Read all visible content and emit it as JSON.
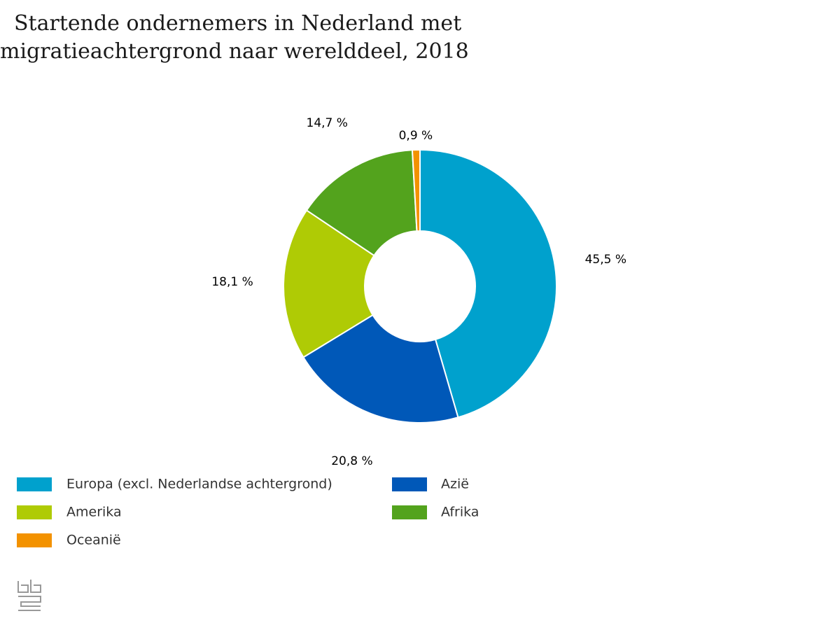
{
  "chart_data": {
    "type": "donut",
    "title": "Startende ondernemers in Nederland met migratieachtergrond naar werelddeel, 2018",
    "categories": [
      "Europa (excl. Nederlandse achtergrond)",
      "Azië",
      "Amerika",
      "Afrika",
      "Oceanië"
    ],
    "values": [
      45.5,
      20.8,
      18.1,
      14.7,
      0.9
    ],
    "value_labels": [
      "45,5 %",
      "20,8 %",
      "18,1 %",
      "14,7 %",
      "0,9 %"
    ],
    "colors": [
      "#00a1cd",
      "#0058b8",
      "#afcb05",
      "#53a31d",
      "#f39200"
    ],
    "legend": "bottom"
  }
}
